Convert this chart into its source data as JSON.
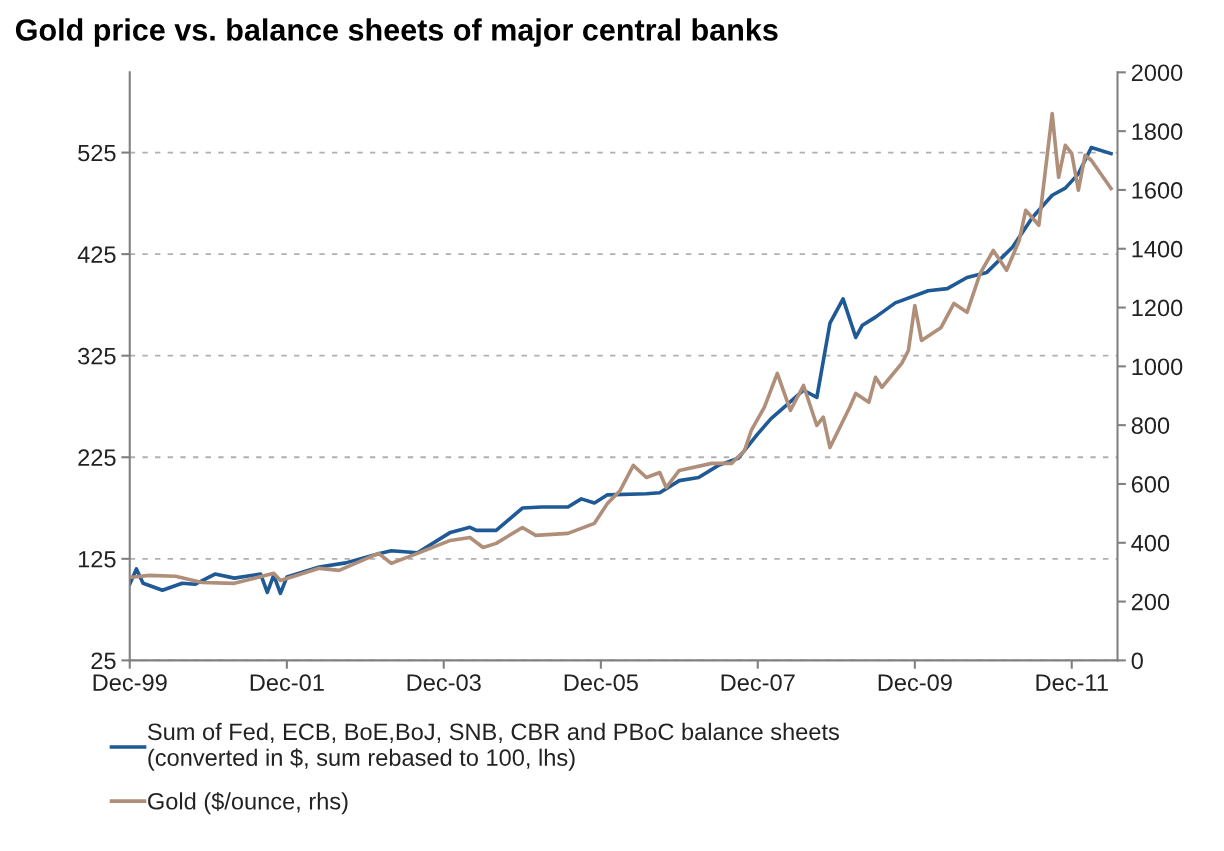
{
  "chart_data": {
    "type": "line",
    "title": "Gold price vs. balance sheets of major central banks",
    "xlim": [
      "1999-12",
      "2012-07"
    ],
    "xticks": [
      {
        "value": "1999-12",
        "label": "Dec-99"
      },
      {
        "value": "2001-12",
        "label": "Dec-01"
      },
      {
        "value": "2003-12",
        "label": "Dec-03"
      },
      {
        "value": "2005-12",
        "label": "Dec-05"
      },
      {
        "value": "2007-12",
        "label": "Dec-07"
      },
      {
        "value": "2009-12",
        "label": "Dec-09"
      },
      {
        "value": "2011-12",
        "label": "Dec-11"
      }
    ],
    "ylim": [
      25,
      604
    ],
    "yticks": [
      25,
      125,
      225,
      325,
      425,
      525
    ],
    "y2lim": [
      0,
      2000
    ],
    "y2ticks": [
      0,
      200,
      400,
      600,
      800,
      1000,
      1200,
      1400,
      1600,
      1800,
      2000
    ],
    "grid": "y",
    "legend": "bottom",
    "line_style": "solid",
    "series": [
      {
        "name": "Sum of Fed, ECB, BoE,BoJ, SNB, CBR and PBoC balance sheets\n(converted in $, sum rebased to 100, lhs)",
        "color": "#1f5a96",
        "axis": "y",
        "x": [
          "1999-12",
          "2000-01",
          "2000-02",
          "2000-05",
          "2000-08",
          "2000-10",
          "2001-01",
          "2001-04",
          "2001-08",
          "2001-09",
          "2001-10",
          "2001-11",
          "2001-12",
          "2002-05",
          "2002-09",
          "2003-02",
          "2003-04",
          "2003-08",
          "2004-01",
          "2004-04",
          "2004-05",
          "2004-08",
          "2004-12",
          "2005-03",
          "2005-07",
          "2005-09",
          "2005-11",
          "2006-01",
          "2006-07",
          "2006-09",
          "2006-12",
          "2007-03",
          "2007-06",
          "2007-09",
          "2007-12",
          "2008-02",
          "2008-04",
          "2008-07",
          "2008-09",
          "2008-11",
          "2009-01",
          "2009-03",
          "2009-04",
          "2009-06",
          "2009-09",
          "2010-02",
          "2010-05",
          "2010-08",
          "2010-11",
          "2011-03",
          "2011-06",
          "2011-09",
          "2011-11",
          "2012-01",
          "2012-03",
          "2012-06"
        ],
        "values": [
          100,
          115,
          101,
          94,
          101,
          100,
          110,
          106,
          110,
          92,
          109,
          91,
          107,
          117,
          121,
          130,
          133,
          131,
          151,
          156,
          153,
          153,
          175,
          176,
          176,
          184,
          180,
          188,
          189,
          190,
          202,
          205,
          217,
          224,
          248,
          263,
          274,
          291,
          284,
          357,
          381,
          343,
          355,
          363,
          377,
          389,
          391,
          402,
          407,
          432,
          461,
          483,
          490,
          504,
          530,
          524
        ]
      },
      {
        "name": "Gold ($/ounce, rhs)",
        "color": "#b08f7a",
        "axis": "y2",
        "x": [
          "1999-12",
          "2000-03",
          "2000-07",
          "2000-11",
          "2001-04",
          "2001-10",
          "2001-11",
          "2002-05",
          "2002-08",
          "2003-02",
          "2003-04",
          "2003-08",
          "2004-01",
          "2004-04",
          "2004-06",
          "2004-08",
          "2004-12",
          "2005-02",
          "2005-07",
          "2005-11",
          "2006-01",
          "2006-03",
          "2006-05",
          "2006-07",
          "2006-09",
          "2006-10",
          "2006-12",
          "2007-05",
          "2007-08",
          "2007-10",
          "2007-11",
          "2008-01",
          "2008-03",
          "2008-05",
          "2008-07",
          "2008-09",
          "2008-10",
          "2008-11",
          "2009-02",
          "2009-03",
          "2009-05",
          "2009-06",
          "2009-07",
          "2009-10",
          "2009-11",
          "2009-12",
          "2010-01",
          "2010-04",
          "2010-06",
          "2010-08",
          "2010-10",
          "2010-12",
          "2011-02",
          "2011-04",
          "2011-05",
          "2011-07",
          "2011-09",
          "2011-10",
          "2011-11",
          "2011-12",
          "2012-01",
          "2012-02",
          "2012-03",
          "2012-06"
        ],
        "values": [
          282,
          289,
          286,
          265,
          262,
          296,
          272,
          313,
          306,
          364,
          330,
          364,
          408,
          418,
          384,
          398,
          452,
          425,
          432,
          466,
          534,
          578,
          663,
          622,
          639,
          588,
          646,
          670,
          670,
          714,
          782,
          861,
          976,
          850,
          935,
          799,
          827,
          724,
          861,
          908,
          878,
          963,
          929,
          1010,
          1054,
          1207,
          1088,
          1131,
          1214,
          1184,
          1316,
          1394,
          1327,
          1429,
          1531,
          1480,
          1860,
          1643,
          1752,
          1724,
          1599,
          1718,
          1701,
          1605
        ]
      }
    ]
  }
}
